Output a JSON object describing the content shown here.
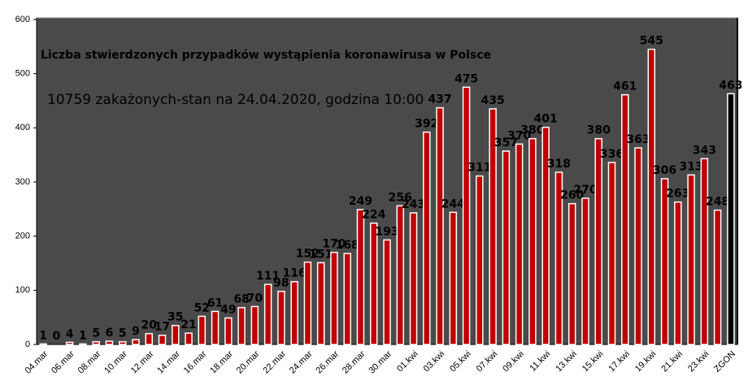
{
  "chart_data": {
    "type": "bar",
    "title": "Liczba stwierdzonych przypadków wystąpienia koronawirusa w Polsce",
    "subtitle": "10759 zakażonych-stan  na 24.04.2020, godzina  10:00",
    "categories": [
      "04.mar",
      null,
      "06.mar",
      null,
      "08.mar",
      null,
      "10.mar",
      null,
      "12.mar",
      null,
      "14.mar",
      null,
      "16.mar",
      null,
      "18.mar",
      null,
      "20.mar",
      null,
      "22.mar",
      null,
      "24.mar",
      null,
      "26.mar",
      null,
      "28.mar",
      null,
      "30.mar",
      null,
      "01.kwi",
      null,
      "03.kwi",
      null,
      "05.kwi",
      null,
      "07.kwi",
      null,
      "09.kwi",
      null,
      "11.kwi",
      null,
      "13.kwi",
      null,
      "15.kwi",
      null,
      "17.kwi",
      null,
      "19.kwi",
      null,
      "21.kwi",
      null,
      "23.kwi",
      null,
      "ZGON"
    ],
    "values": [
      1,
      0,
      4,
      1,
      5,
      6,
      5,
      9,
      20,
      17,
      35,
      21,
      52,
      61,
      49,
      68,
      70,
      111,
      98,
      116,
      152,
      151,
      170,
      168,
      249,
      224,
      193,
      256,
      243,
      392,
      437,
      244,
      475,
      311,
      435,
      357,
      370,
      380,
      401,
      318,
      260,
      270,
      380,
      336,
      461,
      363,
      545,
      306,
      263,
      313,
      343,
      248,
      463
    ],
    "colors": [
      "#c00000",
      "#c00000",
      "#c00000",
      "#c00000",
      "#c00000",
      "#c00000",
      "#c00000",
      "#c00000",
      "#c00000",
      "#c00000",
      "#c00000",
      "#c00000",
      "#c00000",
      "#c00000",
      "#c00000",
      "#c00000",
      "#c00000",
      "#c00000",
      "#c00000",
      "#c00000",
      "#c00000",
      "#c00000",
      "#c00000",
      "#c00000",
      "#c00000",
      "#c00000",
      "#c00000",
      "#c00000",
      "#c00000",
      "#c00000",
      "#c00000",
      "#c00000",
      "#c00000",
      "#c00000",
      "#c00000",
      "#c00000",
      "#c00000",
      "#c00000",
      "#c00000",
      "#c00000",
      "#c00000",
      "#c00000",
      "#c00000",
      "#c00000",
      "#c00000",
      "#c00000",
      "#c00000",
      "#c00000",
      "#c00000",
      "#c00000",
      "#c00000",
      "#c00000",
      "#000000"
    ],
    "ylim": [
      0,
      600
    ],
    "yticks": [
      0,
      100,
      200,
      300,
      400,
      500,
      600
    ]
  }
}
